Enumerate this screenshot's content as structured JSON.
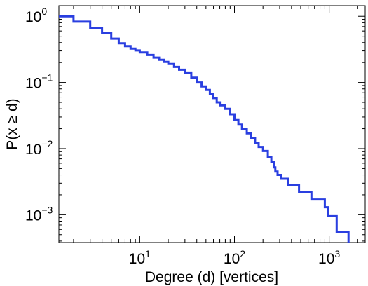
{
  "chart_data": {
    "type": "line",
    "title": "",
    "xlabel": "Degree (d) [vertices]",
    "ylabel": "P(x ≥ d)",
    "x_scale": "log",
    "y_scale": "log",
    "xlim": [
      1.4,
      2400
    ],
    "ylim": [
      0.00038,
      1.45
    ],
    "grid": false,
    "legend": "none",
    "line_color": "#2a3fe0",
    "x_ticks": [
      {
        "value": 10,
        "base": "10",
        "exp": "1"
      },
      {
        "value": 100,
        "base": "10",
        "exp": "2"
      },
      {
        "value": 1000,
        "base": "10",
        "exp": "3"
      }
    ],
    "y_ticks": [
      {
        "value": 1,
        "base": "10",
        "exp": "0"
      },
      {
        "value": 0.1,
        "base": "10",
        "exp": "−1"
      },
      {
        "value": 0.01,
        "base": "10",
        "exp": "−2"
      },
      {
        "value": 0.001,
        "base": "10",
        "exp": "−3"
      }
    ],
    "series": [
      {
        "points": [
          [
            1,
            1.0
          ],
          [
            2,
            0.83
          ],
          [
            3,
            0.66
          ],
          [
            4,
            0.56
          ],
          [
            5,
            0.46
          ],
          [
            6,
            0.39
          ],
          [
            7,
            0.355
          ],
          [
            8,
            0.325
          ],
          [
            9,
            0.305
          ],
          [
            10,
            0.285
          ],
          [
            12,
            0.26
          ],
          [
            14,
            0.238
          ],
          [
            16,
            0.22
          ],
          [
            18,
            0.205
          ],
          [
            20,
            0.19
          ],
          [
            23,
            0.172
          ],
          [
            26,
            0.156
          ],
          [
            30,
            0.138
          ],
          [
            35,
            0.118
          ],
          [
            40,
            0.1
          ],
          [
            45,
            0.087
          ],
          [
            50,
            0.077
          ],
          [
            55,
            0.067
          ],
          [
            60,
            0.058
          ],
          [
            65,
            0.05
          ],
          [
            70,
            0.045
          ],
          [
            80,
            0.04
          ],
          [
            90,
            0.033
          ],
          [
            100,
            0.027
          ],
          [
            110,
            0.023
          ],
          [
            120,
            0.02
          ],
          [
            135,
            0.017
          ],
          [
            150,
            0.0145
          ],
          [
            165,
            0.0123
          ],
          [
            180,
            0.0106
          ],
          [
            200,
            0.0092
          ],
          [
            225,
            0.0075
          ],
          [
            245,
            0.0063
          ],
          [
            260,
            0.0052
          ],
          [
            270,
            0.0045
          ],
          [
            285,
            0.004
          ],
          [
            310,
            0.0035
          ],
          [
            370,
            0.0028
          ],
          [
            480,
            0.0022
          ],
          [
            650,
            0.0017
          ],
          [
            900,
            0.0013
          ],
          [
            970,
            0.00095
          ],
          [
            1200,
            0.00055
          ],
          [
            1600,
            0.00038
          ]
        ]
      }
    ]
  }
}
